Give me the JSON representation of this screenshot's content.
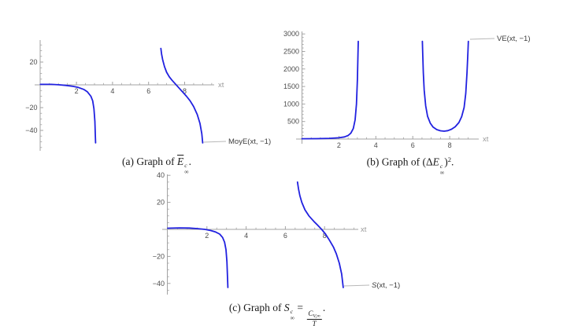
{
  "figure": {
    "colors": {
      "curve": "#2121e0",
      "axis": "#a3a3a3",
      "tick_label": "#4d4d4d",
      "axis_label": "#999999",
      "callout_line": "#b8b8b8",
      "callout_text": "#3d3d3d",
      "caption": "#1a1a1a"
    }
  },
  "captions": {
    "a": {
      "lead": "(a) Graph of ",
      "base": "E",
      "sup": "c",
      "sub": "∞",
      "tail": "."
    },
    "b": {
      "lead": "(b) Graph of (",
      "delta": "Δ",
      "base": "E",
      "sup": "c",
      "sub": "∞",
      "close": ")",
      "power": "2",
      "tail": "."
    },
    "c": {
      "lead": "(c) Graph of ",
      "base": "S",
      "sup": "c",
      "sub": "∞",
      "eq": " = ",
      "frac_num_base": "C",
      "frac_num_sub": "V,∞",
      "frac_den": "T",
      "tail": "."
    }
  },
  "chart_data": [
    {
      "id": "a",
      "type": "line",
      "title": "(a) Graph of E̅c∞.",
      "xlabel": "xt",
      "ylabel": "",
      "xlim": [
        0,
        9.65
      ],
      "ylim": [
        -55,
        39
      ],
      "x_ticks": [
        2,
        4,
        6,
        8
      ],
      "y_ticks": [
        -40,
        -20,
        20
      ],
      "grid": false,
      "legend": "MoyE(xt, −1)",
      "legend_position": "right-of-curve-end",
      "series": [
        {
          "name": "MoyE(xt, −1)",
          "branches": [
            [
              [
                0,
                0.4
              ],
              [
                0.6,
                0.4
              ],
              [
                1.0,
                0.1
              ],
              [
                1.4,
                -0.5
              ],
              [
                1.8,
                -1.3
              ],
              [
                2.1,
                -2.3
              ],
              [
                2.4,
                -4
              ],
              [
                2.6,
                -6
              ],
              [
                2.8,
                -10
              ],
              [
                2.9,
                -14
              ],
              [
                2.97,
                -21
              ],
              [
                3.02,
                -32
              ],
              [
                3.05,
                -45
              ],
              [
                3.06,
                -51
              ]
            ],
            [
              [
                6.68,
                32
              ],
              [
                6.72,
                27
              ],
              [
                6.78,
                22
              ],
              [
                6.88,
                16
              ],
              [
                7.0,
                11
              ],
              [
                7.15,
                7
              ],
              [
                7.3,
                4
              ],
              [
                7.5,
                0.5
              ],
              [
                7.7,
                -3
              ],
              [
                7.9,
                -6.5
              ],
              [
                8.1,
                -10
              ],
              [
                8.3,
                -14
              ],
              [
                8.5,
                -19
              ],
              [
                8.7,
                -26
              ],
              [
                8.85,
                -34
              ],
              [
                8.95,
                -43
              ],
              [
                9.0,
                -51
              ]
            ]
          ]
        }
      ]
    },
    {
      "id": "b",
      "type": "line",
      "title": "(b) Graph of (ΔEc∞)2.",
      "xlabel": "xt",
      "ylabel": "",
      "xlim": [
        0,
        9.5
      ],
      "ylim": [
        0,
        3070
      ],
      "x_ticks": [
        2,
        4,
        6,
        8
      ],
      "y_ticks": [
        500,
        1000,
        1500,
        2000,
        2500,
        3000
      ],
      "grid": false,
      "legend": "VE(xt, −1)",
      "legend_position": "right-of-curve-end",
      "series": [
        {
          "name": "VE(xt, −1)",
          "branches": [
            [
              [
                0,
                10
              ],
              [
                0.8,
                12
              ],
              [
                1.5,
                20
              ],
              [
                2.0,
                35
              ],
              [
                2.3,
                60
              ],
              [
                2.5,
                100
              ],
              [
                2.65,
                170
              ],
              [
                2.78,
                300
              ],
              [
                2.88,
                550
              ],
              [
                2.95,
                1000
              ],
              [
                3.0,
                1700
              ],
              [
                3.03,
                2400
              ],
              [
                3.05,
                2790
              ]
            ],
            [
              [
                6.52,
                2790
              ],
              [
                6.54,
                2400
              ],
              [
                6.57,
                1900
              ],
              [
                6.62,
                1400
              ],
              [
                6.7,
                950
              ],
              [
                6.8,
                650
              ],
              [
                6.95,
                450
              ],
              [
                7.1,
                340
              ],
              [
                7.3,
                270
              ],
              [
                7.5,
                235
              ],
              [
                7.7,
                225
              ],
              [
                7.9,
                240
              ],
              [
                8.1,
                280
              ],
              [
                8.3,
                350
              ],
              [
                8.5,
                470
              ],
              [
                8.65,
                640
              ],
              [
                8.78,
                900
              ],
              [
                8.87,
                1300
              ],
              [
                8.94,
                1900
              ],
              [
                8.99,
                2500
              ],
              [
                9.01,
                2790
              ]
            ]
          ]
        }
      ]
    },
    {
      "id": "c",
      "type": "line",
      "title": "(c) Graph of Sc∞ = CV,∞/T.",
      "xlabel": "xt",
      "ylabel": "",
      "xlim": [
        0,
        9.7
      ],
      "ylim": [
        -45,
        41
      ],
      "x_ticks": [
        2,
        4,
        6,
        8
      ],
      "y_ticks": [
        -40,
        -20,
        20,
        40
      ],
      "grid": false,
      "legend": "S(xt, −1)",
      "legend_italic_head": "S",
      "legend_rest": "(xt, −1)",
      "legend_position": "right-of-curve-end",
      "series": [
        {
          "name": "S(xt, −1)",
          "branches": [
            [
              [
                0,
                0.9
              ],
              [
                0.6,
                1.1
              ],
              [
                1.1,
                1.0
              ],
              [
                1.5,
                0.6
              ],
              [
                1.9,
                0
              ],
              [
                2.2,
                -0.9
              ],
              [
                2.45,
                -2
              ],
              [
                2.65,
                -3.5
              ],
              [
                2.8,
                -6
              ],
              [
                2.9,
                -9.5
              ],
              [
                2.97,
                -15
              ],
              [
                3.02,
                -24
              ],
              [
                3.05,
                -35
              ],
              [
                3.07,
                -43
              ]
            ],
            [
              [
                6.62,
                35
              ],
              [
                6.67,
                30
              ],
              [
                6.74,
                25
              ],
              [
                6.84,
                20
              ],
              [
                7.0,
                14.5
              ],
              [
                7.2,
                10
              ],
              [
                7.45,
                6
              ],
              [
                7.65,
                3
              ],
              [
                7.85,
                0
              ],
              [
                8.05,
                -3.5
              ],
              [
                8.25,
                -8
              ],
              [
                8.45,
                -13
              ],
              [
                8.6,
                -18
              ],
              [
                8.75,
                -25
              ],
              [
                8.87,
                -33
              ],
              [
                8.95,
                -43
              ]
            ]
          ]
        }
      ]
    }
  ]
}
